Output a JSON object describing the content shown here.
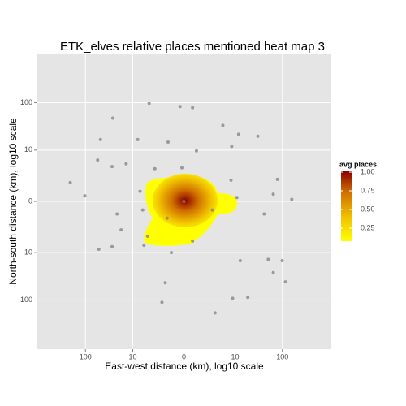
{
  "chart_data": {
    "type": "scatter",
    "title": "ETK_elves relative places mentioned heat map 3",
    "x_label": "East-west distance (km), log10 scale",
    "y_label": "North-south distance (km), log10 scale",
    "scale": "signed-log10",
    "xlim": [
      -1000,
      1000
    ],
    "ylim": [
      -1000,
      1000
    ],
    "xticks": [
      {
        "value": -100,
        "label": "100"
      },
      {
        "value": -10,
        "label": "10"
      },
      0,
      10,
      100
    ],
    "yticks": [
      {
        "value": -100,
        "label": "100"
      },
      {
        "value": -10,
        "label": "10"
      },
      0,
      10,
      100
    ],
    "grid": true,
    "point_color": "#7f7f7f",
    "series": [
      {
        "x": [
          -4.1,
          -27,
          -0.2,
          0.5,
          5.2,
          -7.7,
          -1.1,
          12,
          8.4,
          31,
          -49,
          0.8,
          -28,
          -14,
          -56,
          -2.9,
          -0.1,
          8.1,
          79,
          -205,
          -103,
          -6.8,
          0,
          11,
          65,
          156,
          -22,
          -5.9,
          2.8,
          42,
          -18,
          -1.2,
          -4.5,
          0.5,
          -5.5,
          -0.8,
          13,
          51,
          99,
          65,
          -53,
          -1.4,
          -1.8,
          8.8,
          19,
          3.3,
          116,
          -28
        ],
        "values": [
          97,
          48,
          83,
          79,
          34,
          17,
          15,
          22,
          12,
          20,
          17,
          9.6,
          4.1,
          4.8,
          5.9,
          3.6,
          3.8,
          1.7,
          1.8,
          1.4,
          0.3,
          0.6,
          0,
          0.2,
          0.4,
          0.1,
          -0.8,
          -0.5,
          -0.5,
          -0.8,
          -2.8,
          -1.2,
          -4.1,
          -5.4,
          -6.8,
          -10,
          -15,
          -14,
          -15,
          -27,
          -8.4,
          -44,
          -111,
          -92,
          -88,
          -183,
          -42,
          -7.3
        ]
      }
    ],
    "legend": {
      "title": "avg places",
      "ticks": [
        0.25,
        {
          "value": 0.5,
          "label": "0.50"
        },
        0.75,
        {
          "value": 1,
          "label": "1.00"
        }
      ],
      "colors": [
        "#ffff00",
        "#f0c000",
        "#d07000",
        "#8b0000"
      ]
    }
  }
}
